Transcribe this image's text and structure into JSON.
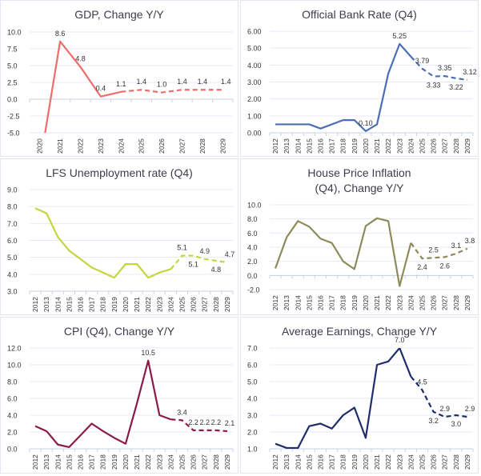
{
  "chart_data": [
    {
      "type": "line",
      "title": "GDP, Change Y/Y",
      "color": "#f26b6b",
      "x": [
        "2020",
        "2021",
        "2022",
        "2023",
        "2024",
        "2025",
        "2026",
        "2027",
        "2028",
        "2029"
      ],
      "values": [
        -9.8,
        8.6,
        4.8,
        0.4,
        1.1,
        1.4,
        1.0,
        1.4,
        1.4,
        1.4
      ],
      "forecast_from": "2024",
      "data_labels": [
        "",
        "8.6",
        "4.8",
        "0.4",
        "1.1",
        "1.4",
        "1.0",
        "1.4",
        "1.4",
        "1.4"
      ],
      "ylim": [
        -5,
        10
      ],
      "yticks": [
        10,
        7.5,
        5,
        2.5,
        0,
        -2.5,
        -5
      ],
      "ytick_labels": [
        "10.0",
        "7.5",
        "5.0",
        "2.5",
        "0.0",
        "-2.5",
        "-5.0"
      ],
      "grid": true
    },
    {
      "type": "line",
      "title": "Official Bank Rate (Q4)",
      "color": "#4a6fb5",
      "x": [
        "2012",
        "2013",
        "2014",
        "2015",
        "2016",
        "2017",
        "2018",
        "2019",
        "2020",
        "2021",
        "2022",
        "2023",
        "2024",
        "2025",
        "2026",
        "2027",
        "2028",
        "2029"
      ],
      "values": [
        0.5,
        0.5,
        0.5,
        0.5,
        0.25,
        0.5,
        0.75,
        0.75,
        0.1,
        0.5,
        3.5,
        5.25,
        4.5,
        3.79,
        3.33,
        3.35,
        3.22,
        3.12
      ],
      "forecast_from": "2024",
      "data_labels": [
        "",
        "",
        "",
        "",
        "",
        "",
        "",
        "",
        "0.10",
        "",
        "",
        "5.25",
        "",
        "3.79",
        "3.33",
        "3.35",
        "3.22",
        "3.12"
      ],
      "ylim": [
        0,
        6
      ],
      "yticks": [
        6,
        5,
        4,
        3,
        2,
        1,
        0
      ],
      "ytick_labels": [
        "6.00",
        "5.00",
        "4.00",
        "3.00",
        "2.00",
        "1.00",
        "0.00"
      ],
      "grid": true
    },
    {
      "type": "line",
      "title": "LFS Unemployment rate (Q4)",
      "color": "#c5d63d",
      "x": [
        "2012",
        "2013",
        "2014",
        "2015",
        "2016",
        "2017",
        "2018",
        "2019",
        "2020",
        "2021",
        "2022",
        "2023",
        "2024",
        "2025",
        "2026",
        "2027",
        "2028",
        "2029"
      ],
      "values": [
        7.9,
        7.6,
        6.2,
        5.4,
        4.9,
        4.4,
        4.1,
        3.8,
        4.6,
        4.6,
        3.8,
        4.1,
        4.3,
        5.1,
        5.1,
        4.9,
        4.8,
        4.7
      ],
      "forecast_from": "2024",
      "data_labels": [
        "",
        "",
        "",
        "",
        "",
        "",
        "",
        "",
        "",
        "",
        "",
        "",
        "",
        "5.1",
        "5.1",
        "4.9",
        "4.8",
        "4.7"
      ],
      "ylim": [
        3,
        9
      ],
      "yticks": [
        9,
        8,
        7,
        6,
        5,
        4,
        3
      ],
      "ytick_labels": [
        "9.0",
        "8.0",
        "7.0",
        "6.0",
        "5.0",
        "4.0",
        "3.0"
      ],
      "grid": true
    },
    {
      "type": "line",
      "title_lines": [
        "House Price Inflation",
        "(Q4), Change Y/Y"
      ],
      "color": "#8e8a5a",
      "x": [
        "2012",
        "2013",
        "2014",
        "2015",
        "2016",
        "2017",
        "2018",
        "2019",
        "2020",
        "2021",
        "2022",
        "2023",
        "2024",
        "2025",
        "2026",
        "2027",
        "2028",
        "2029"
      ],
      "values": [
        1.0,
        5.4,
        7.7,
        6.9,
        5.2,
        4.6,
        2.0,
        0.9,
        7.0,
        8.1,
        7.7,
        -1.5,
        4.6,
        2.4,
        2.5,
        2.6,
        3.1,
        3.8
      ],
      "forecast_from": "2024",
      "data_labels": [
        "",
        "",
        "",
        "",
        "",
        "",
        "",
        "",
        "",
        "",
        "",
        "",
        "",
        "2.4",
        "2.5",
        "2.6",
        "3.1",
        "3.8"
      ],
      "ylim": [
        -2,
        10
      ],
      "yticks": [
        10,
        8,
        6,
        4,
        2,
        0,
        -2
      ],
      "ytick_labels": [
        "10.0",
        "8.0",
        "6.0",
        "4.0",
        "2.0",
        "0.0",
        "-2.0"
      ],
      "grid": true
    },
    {
      "type": "line",
      "title": "CPI (Q4), Change Y/Y",
      "color": "#8b1a4a",
      "x": [
        "2012",
        "2013",
        "2014",
        "2015",
        "2016",
        "2017",
        "2018",
        "2019",
        "2020",
        "2021",
        "2022",
        "2023",
        "2024",
        "2025",
        "2026",
        "2027",
        "2028",
        "2029"
      ],
      "values": [
        2.7,
        2.1,
        0.5,
        0.2,
        1.6,
        3.0,
        2.1,
        1.3,
        0.6,
        5.4,
        10.5,
        4.0,
        3.5,
        3.4,
        2.2,
        2.2,
        2.2,
        2.1
      ],
      "forecast_from": "2024",
      "data_labels": [
        "",
        "",
        "",
        "",
        "",
        "",
        "",
        "",
        "",
        "",
        "10.5",
        "",
        "",
        "3.4",
        "2.2",
        "2.2",
        "2.2",
        "2.1"
      ],
      "ylim": [
        0,
        12
      ],
      "yticks": [
        12,
        10,
        8,
        6,
        4,
        2,
        0
      ],
      "ytick_labels": [
        "12.0",
        "10.0",
        "8.0",
        "6.0",
        "4.0",
        "2.0",
        "0.0"
      ],
      "grid": true
    },
    {
      "type": "line",
      "title": "Average Earnings, Change Y/Y",
      "color": "#1f2d6b",
      "x": [
        "2012",
        "2013",
        "2014",
        "2015",
        "2016",
        "2017",
        "2018",
        "2019",
        "2020",
        "2021",
        "2022",
        "2023",
        "2024",
        "2025",
        "2026",
        "2027",
        "2028",
        "2029"
      ],
      "values": [
        1.3,
        1.05,
        1.05,
        2.35,
        2.5,
        2.2,
        3.0,
        3.45,
        1.65,
        6.0,
        6.2,
        7.0,
        5.3,
        4.5,
        3.2,
        2.9,
        3.0,
        2.9
      ],
      "forecast_from": "2024",
      "data_labels": [
        "",
        "",
        "",
        "",
        "",
        "",
        "",
        "",
        "",
        "",
        "",
        "7.0",
        "",
        "4.5",
        "3.2",
        "2.9",
        "3.0",
        "2.9"
      ],
      "ylim": [
        1,
        7
      ],
      "yticks": [
        7,
        6,
        5,
        4,
        3,
        2,
        1
      ],
      "ytick_labels": [
        "7.0",
        "6.0",
        "5.0",
        "4.0",
        "3.0",
        "2.0",
        "1.0"
      ],
      "grid": true
    }
  ]
}
